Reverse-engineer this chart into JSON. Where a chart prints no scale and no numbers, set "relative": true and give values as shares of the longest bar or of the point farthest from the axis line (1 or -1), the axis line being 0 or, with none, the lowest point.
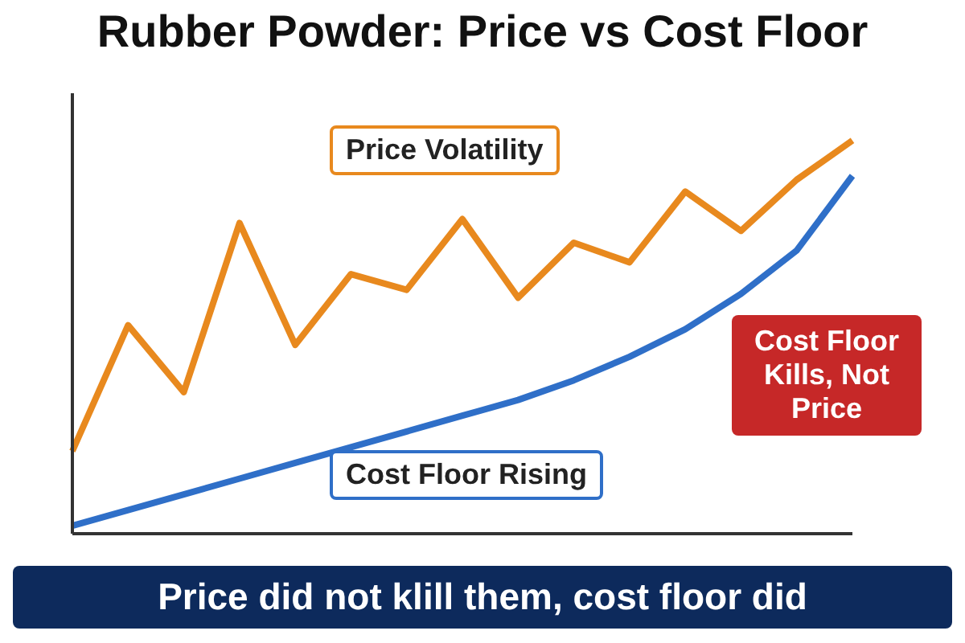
{
  "chart_data": {
    "type": "line",
    "title": "Rubber Powder: Price vs Cost Floor",
    "relative": true,
    "marker": "none",
    "legend": false,
    "grid": false,
    "categories": [
      null,
      null,
      null,
      null,
      null,
      null,
      null,
      null,
      null,
      null,
      null,
      null,
      null,
      null,
      null
    ],
    "series": [
      {
        "name": "Price Volatility",
        "color": "#e8891e",
        "values": [
          0.21,
          0.53,
          0.36,
          0.79,
          0.48,
          0.66,
          0.62,
          0.8,
          0.6,
          0.74,
          0.69,
          0.87,
          0.77,
          0.9,
          1
        ]
      },
      {
        "name": "Cost Floor Rising",
        "color": "#2f6fc8",
        "values": [
          0.02,
          0.06,
          0.1,
          0.14,
          0.18,
          0.22,
          0.26,
          0.3,
          0.34,
          0.39,
          0.45,
          0.52,
          0.61,
          0.72,
          0.91
        ]
      }
    ],
    "annotations": [
      "Cost Floor Kills, Not Price",
      "Price did not klill them, cost floor did"
    ]
  }
}
